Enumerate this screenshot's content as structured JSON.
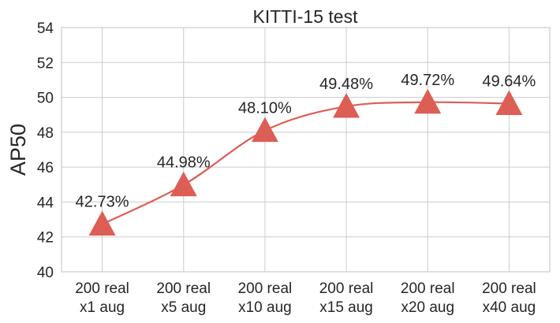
{
  "chart_data": {
    "type": "line",
    "title": "KITTI-15 test",
    "xlabel": "",
    "ylabel": "AP50",
    "categories": [
      [
        "200 real",
        "x1 aug"
      ],
      [
        "200 real",
        "x5 aug"
      ],
      [
        "200 real",
        "x10 aug"
      ],
      [
        "200 real",
        "x15 aug"
      ],
      [
        "200 real",
        "x20 aug"
      ],
      [
        "200 real",
        "x40 aug"
      ]
    ],
    "values": [
      42.73,
      44.98,
      48.1,
      49.48,
      49.72,
      49.64
    ],
    "data_labels": [
      "42.73%",
      "44.98%",
      "48.10%",
      "49.48%",
      "49.72%",
      "49.64%"
    ],
    "ylim": [
      40,
      54
    ],
    "yticks": [
      "40",
      "42",
      "44",
      "46",
      "48",
      "50",
      "52",
      "54"
    ],
    "grid": true,
    "marker": "triangle",
    "color": "#dd5e55"
  }
}
